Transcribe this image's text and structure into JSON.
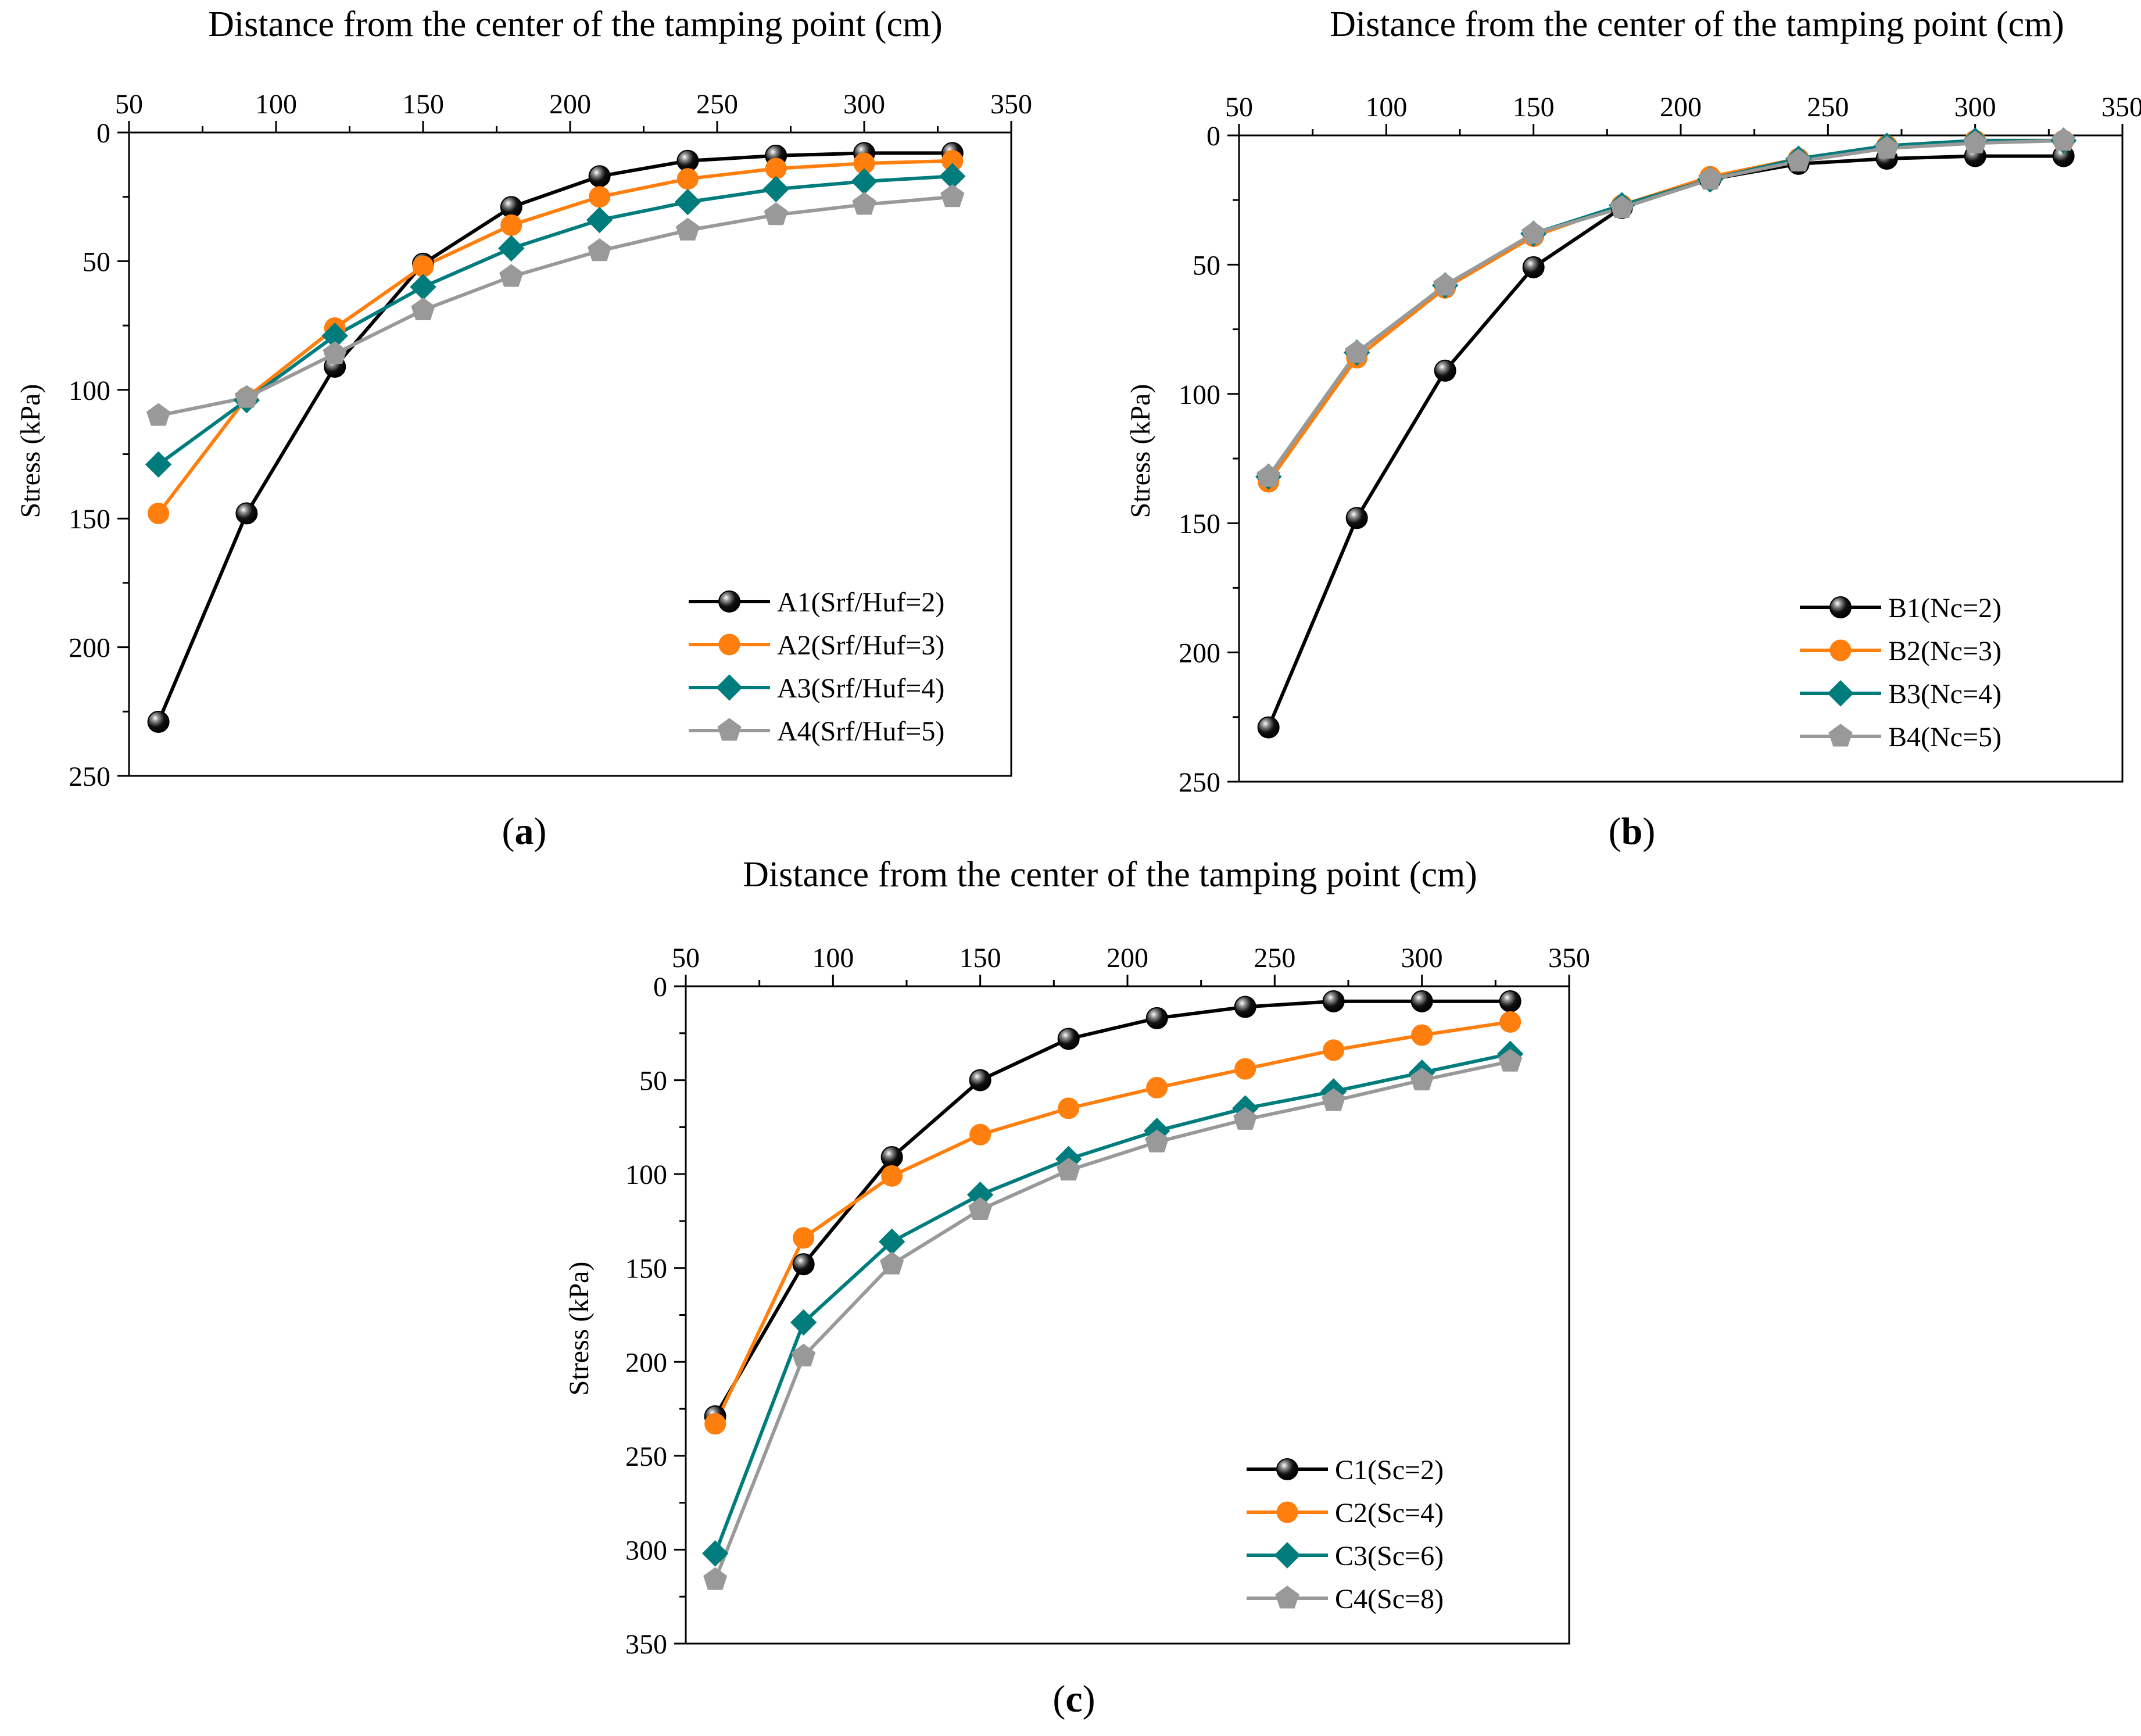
{
  "chart_data": [
    {
      "id": "a",
      "type": "line",
      "panel_label": "a",
      "xlabel": "Distance from the center of the tamping point (cm)",
      "ylabel": "Stress (kPa)",
      "xlim": [
        50,
        350
      ],
      "ylim": [
        0,
        250
      ],
      "y_inverted": true,
      "x_axis_position": "top",
      "xticks": [
        50,
        100,
        150,
        200,
        250,
        300,
        350
      ],
      "yticks": [
        0,
        50,
        100,
        150,
        200,
        250
      ],
      "legend_position": "bottom-right",
      "x": [
        60,
        90,
        120,
        150,
        180,
        210,
        240,
        270,
        300,
        330
      ],
      "series": [
        {
          "name": "A1(Srf/Huf=2)",
          "color": "#000000",
          "marker": "sphere",
          "values": [
            229,
            148,
            91,
            51,
            29,
            17,
            11,
            9,
            8,
            8
          ]
        },
        {
          "name": "A2(Srf/Huf=3)",
          "color": "#ff7f0e",
          "marker": "circle",
          "values": [
            148,
            103,
            76,
            52,
            36,
            25,
            18,
            14,
            12,
            11
          ]
        },
        {
          "name": "A3(Srf/Huf=4)",
          "color": "#007c7c",
          "marker": "diamond",
          "values": [
            129,
            104,
            79,
            60,
            45,
            34,
            27,
            22,
            19,
            17
          ]
        },
        {
          "name": "A4(Srf/Huf=5)",
          "color": "#999999",
          "marker": "pentagon",
          "values": [
            110,
            103,
            86,
            69,
            56,
            46,
            38,
            32,
            28,
            25
          ]
        }
      ]
    },
    {
      "id": "b",
      "type": "line",
      "panel_label": "b",
      "xlabel": "Distance from the center of the tamping point (cm)",
      "ylabel": "Stress (kPa)",
      "xlim": [
        50,
        350
      ],
      "ylim": [
        0,
        250
      ],
      "y_inverted": true,
      "x_axis_position": "top",
      "xticks": [
        50,
        100,
        150,
        200,
        250,
        300,
        350
      ],
      "yticks": [
        0,
        50,
        100,
        150,
        200,
        250
      ],
      "legend_position": "bottom-right",
      "x": [
        60,
        90,
        120,
        150,
        180,
        210,
        240,
        270,
        300,
        330
      ],
      "series": [
        {
          "name": "B1(Nc=2)",
          "color": "#000000",
          "marker": "sphere",
          "values": [
            229,
            148,
            91,
            51,
            28,
            17,
            11,
            9,
            8,
            8
          ]
        },
        {
          "name": "B2(Nc=3)",
          "color": "#ff7f0e",
          "marker": "circle",
          "values": [
            134,
            86,
            59,
            39,
            27,
            16,
            9,
            4,
            2,
            2
          ]
        },
        {
          "name": "B3(Nc=4)",
          "color": "#007c7c",
          "marker": "diamond",
          "values": [
            132,
            84,
            58,
            38,
            27,
            17,
            9,
            4,
            2,
            2
          ]
        },
        {
          "name": "B4(Nc=5)",
          "color": "#999999",
          "marker": "pentagon",
          "values": [
            132,
            84,
            58,
            38,
            28,
            17,
            10,
            5,
            3,
            2
          ]
        }
      ]
    },
    {
      "id": "c",
      "type": "line",
      "panel_label": "c",
      "xlabel": "Distance from the center of the tamping point (cm)",
      "ylabel": "Stress (kPa)",
      "xlim": [
        50,
        350
      ],
      "ylim": [
        0,
        350
      ],
      "y_inverted": true,
      "x_axis_position": "top",
      "xticks": [
        50,
        100,
        150,
        200,
        250,
        300,
        350
      ],
      "yticks": [
        0,
        50,
        100,
        150,
        200,
        250,
        300,
        350
      ],
      "legend_position": "bottom-right",
      "x": [
        60,
        90,
        120,
        150,
        180,
        210,
        240,
        270,
        300,
        330
      ],
      "series": [
        {
          "name": "C1(Sc=2)",
          "color": "#000000",
          "marker": "sphere",
          "values": [
            229,
            148,
            91,
            50,
            28,
            17,
            11,
            8,
            8,
            8
          ]
        },
        {
          "name": "C2(Sc=4)",
          "color": "#ff7f0e",
          "marker": "circle",
          "values": [
            233,
            134,
            101,
            79,
            65,
            54,
            44,
            34,
            26,
            19
          ]
        },
        {
          "name": "C3(Sc=6)",
          "color": "#007c7c",
          "marker": "diamond",
          "values": [
            302,
            179,
            136,
            111,
            92,
            77,
            65,
            56,
            46,
            36
          ]
        },
        {
          "name": "C4(Sc=8)",
          "color": "#999999",
          "marker": "pentagon",
          "values": [
            316,
            197,
            148,
            119,
            98,
            83,
            71,
            61,
            50,
            40
          ]
        }
      ]
    }
  ]
}
